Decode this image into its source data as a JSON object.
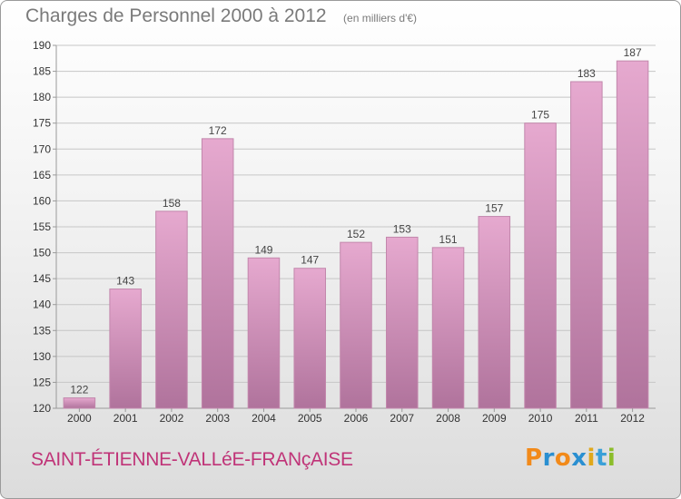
{
  "title": "Charges de Personnel 2000 à 2012",
  "subtitle": "(en milliers d'€)",
  "commune": "SAINT-ÉTIENNE-VALLéE-FRANçAISE",
  "logo": {
    "text": "Proxiti",
    "letter_colors": [
      "#f28a1a",
      "#2a8fd1",
      "#f28a1a",
      "#2a8fd1",
      "#e0a81a",
      "#3aa0d8",
      "#8bbd2a"
    ]
  },
  "colors": {
    "bar_top": "#e6a9cf",
    "bar_bottom": "#b0739c",
    "bar_edge": "#c287ac",
    "axis": "#9a9a9a",
    "grid": "#c6c6c6",
    "tick_text": "#333333",
    "label_text": "#444444"
  },
  "chart_data": {
    "type": "bar",
    "categories": [
      "2000",
      "2001",
      "2002",
      "2003",
      "2004",
      "2005",
      "2006",
      "2007",
      "2008",
      "2009",
      "2010",
      "2011",
      "2012"
    ],
    "values": [
      122,
      143,
      158,
      172,
      149,
      147,
      152,
      153,
      151,
      157,
      175,
      183,
      187
    ],
    "data_labels": [
      "122",
      "143",
      "158",
      "172",
      "149",
      "147",
      "152",
      "153",
      "151",
      "157",
      "175",
      "183",
      "187"
    ],
    "ylim": [
      120,
      190
    ],
    "yticks": [
      120,
      125,
      130,
      135,
      140,
      145,
      150,
      155,
      160,
      165,
      170,
      175,
      180,
      185,
      190
    ],
    "grid": true
  }
}
